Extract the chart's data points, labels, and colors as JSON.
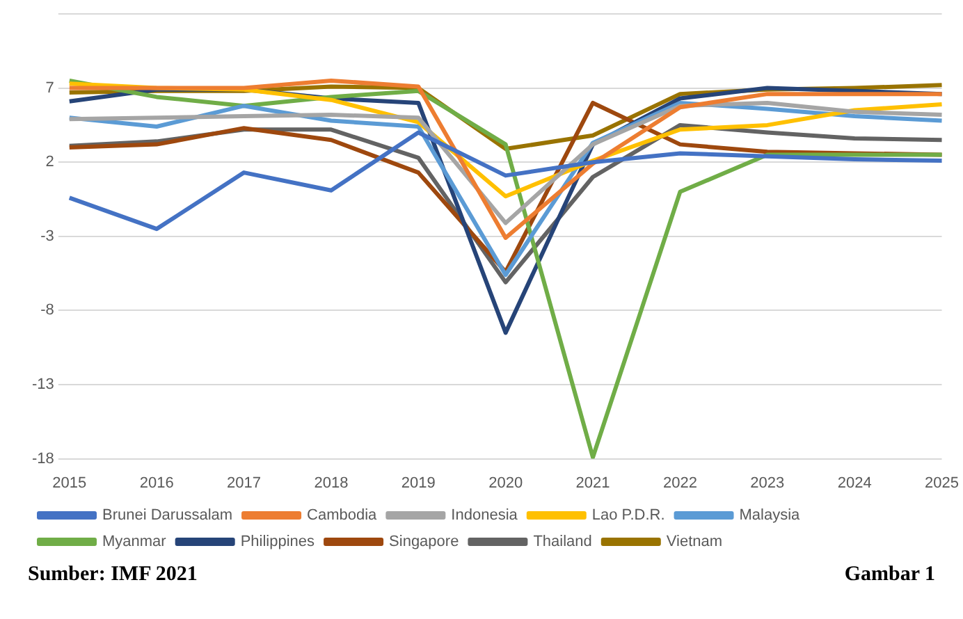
{
  "chart_data": {
    "type": "line",
    "categories": [
      "2015",
      "2016",
      "2017",
      "2018",
      "2019",
      "2020",
      "2021",
      "2022",
      "2023",
      "2024",
      "2025"
    ],
    "series": [
      {
        "name": "Brunei Darussalam",
        "color": "#4472c4",
        "values": [
          -0.4,
          -2.5,
          1.3,
          0.1,
          4.0,
          1.1,
          2.0,
          2.6,
          2.4,
          2.2,
          2.1
        ]
      },
      {
        "name": "Cambodia",
        "color": "#ed7d31",
        "values": [
          7.0,
          7.0,
          7.0,
          7.5,
          7.1,
          -3.1,
          1.9,
          5.7,
          6.6,
          6.6,
          6.6
        ]
      },
      {
        "name": "Indonesia",
        "color": "#a5a5a5",
        "values": [
          4.9,
          5.0,
          5.1,
          5.2,
          5.0,
          -2.1,
          3.2,
          5.8,
          6.0,
          5.4,
          5.2
        ]
      },
      {
        "name": "Lao P.D.R.",
        "color": "#ffc000",
        "values": [
          7.3,
          7.0,
          6.9,
          6.2,
          4.7,
          -0.3,
          2.1,
          4.2,
          4.5,
          5.5,
          5.9
        ]
      },
      {
        "name": "Malaysia",
        "color": "#5b9bd5",
        "values": [
          5.0,
          4.4,
          5.8,
          4.8,
          4.4,
          -5.6,
          3.3,
          6.0,
          5.6,
          5.1,
          4.8
        ]
      },
      {
        "name": "Myanmar",
        "color": "#70ad47",
        "values": [
          7.5,
          6.4,
          5.8,
          6.4,
          6.8,
          3.2,
          -17.9,
          0.0,
          2.5,
          2.5,
          2.5
        ]
      },
      {
        "name": "Philippines",
        "color": "#264478",
        "values": [
          6.1,
          6.9,
          6.9,
          6.3,
          6.0,
          -9.5,
          3.2,
          6.3,
          7.0,
          6.8,
          6.6
        ]
      },
      {
        "name": "Singapore",
        "color": "#9e480e",
        "values": [
          3.0,
          3.2,
          4.3,
          3.5,
          1.3,
          -5.4,
          6.0,
          3.2,
          2.7,
          2.6,
          2.5
        ]
      },
      {
        "name": "Thailand",
        "color": "#636363",
        "values": [
          3.1,
          3.4,
          4.2,
          4.2,
          2.3,
          -6.1,
          1.0,
          4.5,
          4.0,
          3.6,
          3.5
        ]
      },
      {
        "name": "Vietnam",
        "color": "#997300",
        "values": [
          6.7,
          6.8,
          6.8,
          7.1,
          7.0,
          2.9,
          3.8,
          6.6,
          6.9,
          7.0,
          7.2
        ]
      }
    ],
    "ylim": [
      -18,
      12
    ],
    "yticks": [
      -18,
      -13,
      -8,
      -3,
      2,
      7,
      {
        "value": 12,
        "label": null
      }
    ],
    "grid": "y",
    "legend": "bottom",
    "marker": "none",
    "line_style": "solid",
    "annotations": [
      "Sumber: IMF 2021",
      "Gambar 1"
    ]
  }
}
